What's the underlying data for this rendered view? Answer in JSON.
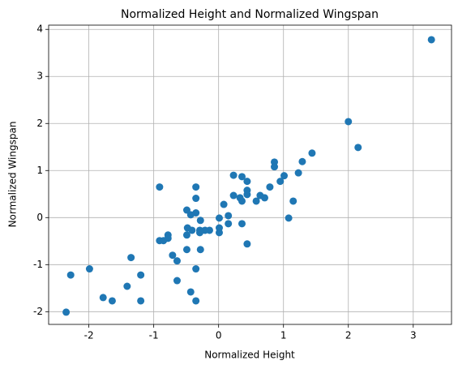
{
  "chart_data": {
    "type": "scatter",
    "title": "Normalized Height and Normalized Wingspan",
    "x_label": "Normalized Height",
    "y_label": "Normalized Wingspan",
    "color": "#1f77b4",
    "grid": true,
    "xlim": [
      -2.62,
      3.59
    ],
    "ylim": [
      -2.27,
      4.09
    ],
    "xticks": [
      -2,
      -1,
      0,
      1,
      2,
      3
    ],
    "yticks": [
      -2,
      -1,
      0,
      1,
      2,
      3,
      4
    ],
    "x": [
      3.28,
      2.0,
      2.15,
      1.44,
      1.29,
      1.23,
      0.86,
      0.86,
      0.79,
      1.01,
      0.95,
      1.15,
      1.08,
      0.71,
      0.64,
      0.58,
      0.44,
      0.44,
      0.44,
      0.36,
      0.23,
      0.23,
      0.33,
      0.36,
      0.44,
      0.36,
      0.08,
      0.15,
      0.15,
      0.01,
      0.01,
      0.01,
      -0.14,
      -0.21,
      -0.29,
      -0.28,
      -0.29,
      -0.28,
      -0.35,
      -0.35,
      -0.35,
      -0.43,
      -0.49,
      -0.48,
      -0.41,
      -0.49,
      -0.49,
      -0.35,
      -0.43,
      -0.35,
      -0.64,
      -0.71,
      -0.64,
      -0.91,
      -0.91,
      -0.85,
      -0.78,
      -0.78,
      -1.35,
      -1.41,
      -1.2,
      -1.2,
      -1.64,
      -1.78,
      -1.99,
      -2.28,
      -2.35
    ],
    "y": [
      3.78,
      2.04,
      1.49,
      1.37,
      1.19,
      0.95,
      1.18,
      1.08,
      0.65,
      0.89,
      0.77,
      0.35,
      -0.01,
      0.42,
      0.47,
      0.35,
      0.58,
      0.49,
      0.77,
      0.87,
      0.9,
      0.47,
      0.42,
      0.35,
      -0.56,
      -0.13,
      0.28,
      0.04,
      -0.13,
      -0.01,
      -0.22,
      -0.32,
      -0.27,
      -0.27,
      -0.27,
      -0.06,
      -0.32,
      -0.68,
      0.65,
      0.41,
      0.1,
      0.06,
      0.16,
      -0.22,
      -0.27,
      -0.37,
      -0.68,
      -1.09,
      -1.58,
      -1.77,
      -0.92,
      -0.8,
      -1.34,
      0.65,
      -0.49,
      -0.49,
      -0.37,
      -0.44,
      -0.85,
      -1.46,
      -1.22,
      -1.77,
      -1.77,
      -1.7,
      -1.09,
      -1.22,
      -2.01
    ]
  }
}
